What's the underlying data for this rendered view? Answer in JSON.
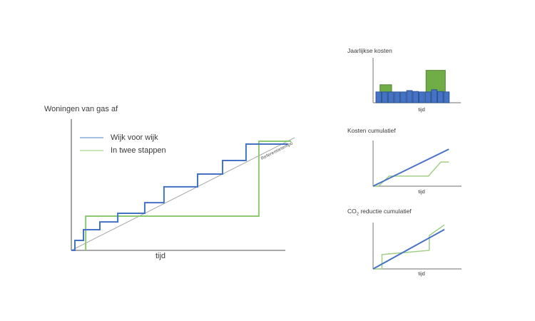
{
  "page": {
    "background": "#FFFFFF"
  },
  "colors": {
    "blue_line": "#4472C4",
    "green_line_main": "#8CC971",
    "green_line_small": "#A2CF87",
    "blue_bar_fill": "#4472C4",
    "blue_bar_border": "#2E5395",
    "green_bar_fill": "#70AD47",
    "green_bar_border": "#538135",
    "reference_gray": "#A6A6A6",
    "axis_gray": "#8C8C8C",
    "text": "#3A3A3A",
    "legend_blue_swatch": "#A6C0E6",
    "legend_green_swatch": "#C8E4B8"
  },
  "main_chart": {
    "y_axis_label": "Woningen van gas af",
    "x_axis_label": "tijd",
    "legend": {
      "items": [
        {
          "label": "Wijk voor wijk",
          "color": "#A6C0E6"
        },
        {
          "label": "In twee stappen",
          "color": "#C8E4B8"
        }
      ]
    },
    "reference_label": "Referentietempo"
  },
  "small_charts": {
    "annual": {
      "title": "Jaarlijkse kosten",
      "x_axis_label": "tijd"
    },
    "cost_cumulative": {
      "title": "Kosten cumulatief",
      "x_axis_label": "tijd"
    },
    "co2_cumulative": {
      "title": "CO2 reductie cumulatief",
      "title_parts": [
        "CO",
        "2",
        " reductie cumulatief"
      ],
      "x_axis_label": "tijd"
    }
  },
  "chart_data": [
    {
      "id": "woningen-van-gas-af",
      "type": "line",
      "title": "",
      "ylabel": "Woningen van gas af",
      "xlabel": "tijd",
      "units": "percent-of-axis (conceptual diagram, axes have no tick labels)",
      "legend_position": "top-left",
      "series": [
        {
          "name": "Referentietempo",
          "color": "#A6A6A6",
          "shape": "straight-reference",
          "points": [
            [
              0,
              0
            ],
            [
              101,
              101.3
            ]
          ]
        },
        {
          "name": "In twee stappen",
          "color": "#8CC971",
          "shape": "two-step",
          "points": [
            [
              6.5,
              0
            ],
            [
              6.5,
              30.8
            ],
            [
              84.8,
              30.8
            ],
            [
              84.8,
              98.1
            ],
            [
              99.4,
              98.1
            ]
          ]
        },
        {
          "name": "Wijk voor wijk",
          "color": "#4472C4",
          "shape": "staircase",
          "points": [
            [
              0,
              0
            ],
            [
              1.6,
              0
            ],
            [
              1.6,
              9
            ],
            [
              5.5,
              9
            ],
            [
              5.5,
              18.6
            ],
            [
              12.9,
              18.6
            ],
            [
              12.9,
              25.6
            ],
            [
              21,
              25.6
            ],
            [
              21,
              33.3
            ],
            [
              33.2,
              33.3
            ],
            [
              33.2,
              42.9
            ],
            [
              41.9,
              42.9
            ],
            [
              41.9,
              57.1
            ],
            [
              57.1,
              57.1
            ],
            [
              57.1,
              68.6
            ],
            [
              68.4,
              68.6
            ],
            [
              68.4,
              80.8
            ],
            [
              79,
              80.8
            ],
            [
              79,
              95.5
            ],
            [
              98,
              95.5
            ]
          ]
        }
      ]
    },
    {
      "id": "jaarlijkse-kosten",
      "type": "bar",
      "title": "Jaarlijkse kosten",
      "xlabel": "tijd",
      "units": "percent-of-axis",
      "series": [
        {
          "name": "In twee stappen",
          "fill": "#70AD47",
          "border": "#538135",
          "bars": [
            {
              "x": 7.8,
              "w": 13,
              "h": 40
            },
            {
              "x": 59.4,
              "w": 21.6,
              "h": 72
            }
          ]
        },
        {
          "name": "Wijk voor wijk",
          "fill": "#4472C4",
          "border": "#2E5395",
          "bars": [
            {
              "x": 3.2,
              "w": 6.1,
              "h": 24
            },
            {
              "x": 10.1,
              "w": 6.1,
              "h": 24
            },
            {
              "x": 17,
              "w": 6.1,
              "h": 24
            },
            {
              "x": 24,
              "w": 6.1,
              "h": 24
            },
            {
              "x": 30.9,
              "w": 6.1,
              "h": 24
            },
            {
              "x": 37.8,
              "w": 6.1,
              "h": 27
            },
            {
              "x": 44.7,
              "w": 6.1,
              "h": 25
            },
            {
              "x": 51.6,
              "w": 6.1,
              "h": 24
            },
            {
              "x": 58.6,
              "w": 6.1,
              "h": 24
            },
            {
              "x": 65.5,
              "w": 6.1,
              "h": 29
            },
            {
              "x": 72.4,
              "w": 6.1,
              "h": 25
            },
            {
              "x": 79.3,
              "w": 6.1,
              "h": 24
            }
          ]
        }
      ]
    },
    {
      "id": "kosten-cumulatief",
      "type": "line",
      "title": "Kosten cumulatief",
      "xlabel": "tijd",
      "units": "percent-of-axis",
      "series": [
        {
          "name": "In twee stappen",
          "color": "#A2CF87",
          "points": [
            [
              0,
              0
            ],
            [
              6,
              0
            ],
            [
              18,
              22
            ],
            [
              62,
              22
            ],
            [
              76,
              53
            ],
            [
              85,
              53
            ]
          ]
        },
        {
          "name": "Wijk voor wijk",
          "color": "#4472C4",
          "points": [
            [
              0,
              0
            ],
            [
              85,
              81
            ]
          ]
        }
      ]
    },
    {
      "id": "co2-reductie-cumulatief",
      "type": "line",
      "title": "CO2 reductie cumulatief",
      "xlabel": "tijd",
      "units": "percent-of-axis",
      "series": [
        {
          "name": "In twee stappen",
          "color": "#A2CF87",
          "points": [
            [
              0,
              0
            ],
            [
              10,
              0
            ],
            [
              10,
              31
            ],
            [
              63,
              40
            ],
            [
              63,
              72
            ],
            [
              80,
              95
            ]
          ]
        },
        {
          "name": "Wijk voor wijk",
          "color": "#4472C4",
          "points": [
            [
              0,
              0
            ],
            [
              80,
              85
            ]
          ]
        }
      ]
    }
  ]
}
